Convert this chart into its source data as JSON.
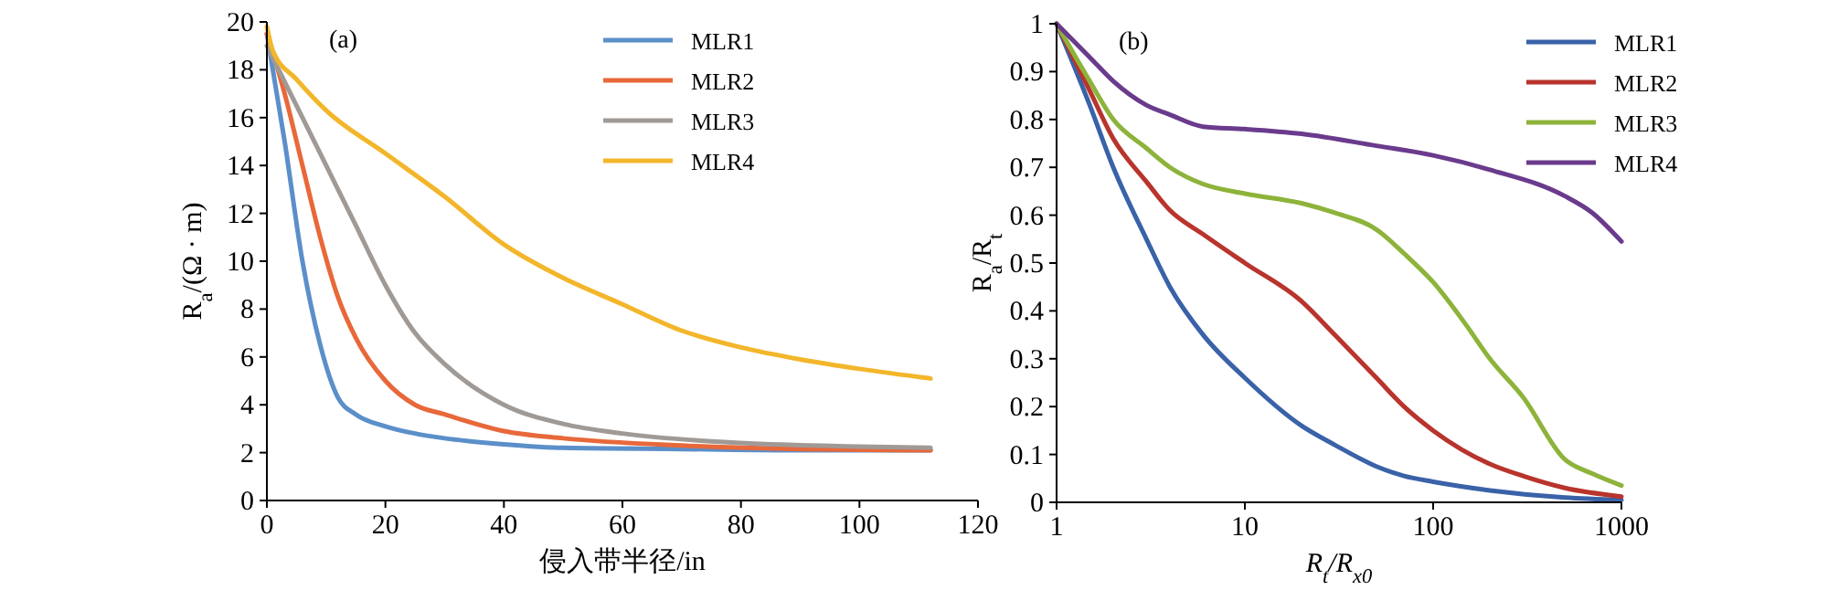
{
  "chart_data": [
    {
      "type": "line",
      "annotations": [
        "(a)"
      ],
      "xlabel": "侵入带半径/in",
      "ylabel": "R$_{a}$/(Ω · m)",
      "xlim": [
        0,
        120
      ],
      "xticks": [
        0,
        20,
        40,
        60,
        80,
        100,
        120
      ],
      "ylim": [
        0,
        20
      ],
      "yticks": [
        0,
        2,
        4,
        6,
        8,
        10,
        12,
        14,
        16,
        18,
        20
      ],
      "legend": "top right",
      "grid": false,
      "series": [
        {
          "name": "MLR1",
          "color": "#5b8fc9",
          "x": [
            0,
            3,
            6,
            9,
            12,
            15,
            20,
            25,
            30,
            40,
            50,
            70,
            90,
            112
          ],
          "values": [
            19.5,
            15,
            10,
            6.5,
            4.3,
            3.6,
            3.1,
            2.8,
            2.6,
            2.35,
            2.2,
            2.15,
            2.1,
            2.1
          ]
        },
        {
          "name": "MLR2",
          "color": "#e8683a",
          "x": [
            0,
            3,
            6,
            9,
            12,
            15,
            20,
            25,
            30,
            40,
            50,
            70,
            90,
            112
          ],
          "values": [
            19.5,
            17,
            14,
            11,
            8.5,
            6.8,
            5,
            4,
            3.6,
            2.9,
            2.6,
            2.3,
            2.15,
            2.1
          ]
        },
        {
          "name": "MLR3",
          "color": "#a09a96",
          "x": [
            0,
            5,
            10,
            15,
            20,
            25,
            30,
            40,
            50,
            60,
            80,
            100,
            112
          ],
          "values": [
            19,
            16.5,
            14,
            11.5,
            9,
            7,
            5.7,
            4,
            3.2,
            2.8,
            2.4,
            2.25,
            2.2
          ]
        },
        {
          "name": "MLR4",
          "color": "#f3b62b",
          "x": [
            0,
            1,
            5,
            10,
            20,
            30,
            40,
            50,
            60,
            70,
            80,
            90,
            100,
            112
          ],
          "values": [
            19.8,
            18.8,
            17.6,
            16.3,
            14.5,
            12.7,
            10.7,
            9.3,
            8.2,
            7.1,
            6.4,
            5.9,
            5.5,
            5.1
          ]
        }
      ]
    },
    {
      "type": "line",
      "annotations": [
        "(b)"
      ],
      "xlabel": "R$_{t}$/R$_{x0}$",
      "ylabel": "R$_{a}$/R$_{t}$",
      "log": "x",
      "xlim": [
        1,
        1000
      ],
      "xticks": [
        1,
        10,
        100,
        1000
      ],
      "ylim": [
        0,
        1
      ],
      "yticks": [
        0,
        0.1,
        0.2,
        0.3,
        0.4,
        0.5,
        0.6,
        0.7,
        0.8,
        0.9,
        1
      ],
      "legend": "top right",
      "grid": false,
      "series": [
        {
          "name": "MLR1",
          "color": "#3a62a8",
          "x": [
            1,
            1.5,
            2,
            3,
            4,
            6,
            10,
            20,
            30,
            50,
            70,
            100,
            200,
            500,
            1000
          ],
          "values": [
            1,
            0.83,
            0.7,
            0.55,
            0.45,
            0.35,
            0.26,
            0.16,
            0.12,
            0.075,
            0.055,
            0.043,
            0.025,
            0.01,
            0.005
          ]
        },
        {
          "name": "MLR2",
          "color": "#b8342c",
          "x": [
            1,
            1.5,
            2,
            3,
            4,
            6,
            10,
            20,
            30,
            50,
            70,
            100,
            200,
            300,
            500,
            1000
          ],
          "values": [
            1,
            0.86,
            0.76,
            0.67,
            0.61,
            0.56,
            0.5,
            0.42,
            0.35,
            0.26,
            0.2,
            0.15,
            0.08,
            0.055,
            0.03,
            0.012
          ]
        },
        {
          "name": "MLR3",
          "color": "#8db33a",
          "x": [
            1,
            1.5,
            2,
            3,
            4,
            6,
            10,
            20,
            30,
            50,
            70,
            100,
            150,
            200,
            300,
            500,
            700,
            1000
          ],
          "values": [
            1,
            0.88,
            0.8,
            0.74,
            0.7,
            0.665,
            0.645,
            0.625,
            0.605,
            0.57,
            0.52,
            0.46,
            0.37,
            0.3,
            0.22,
            0.09,
            0.06,
            0.035
          ]
        },
        {
          "name": "MLR4",
          "color": "#6a3b8c",
          "x": [
            1,
            1.5,
            2,
            3,
            4,
            6,
            10,
            20,
            50,
            100,
            200,
            500,
            700,
            1000
          ],
          "values": [
            1,
            0.93,
            0.88,
            0.83,
            0.81,
            0.785,
            0.78,
            0.77,
            0.745,
            0.725,
            0.695,
            0.64,
            0.605,
            0.545
          ]
        }
      ]
    }
  ]
}
